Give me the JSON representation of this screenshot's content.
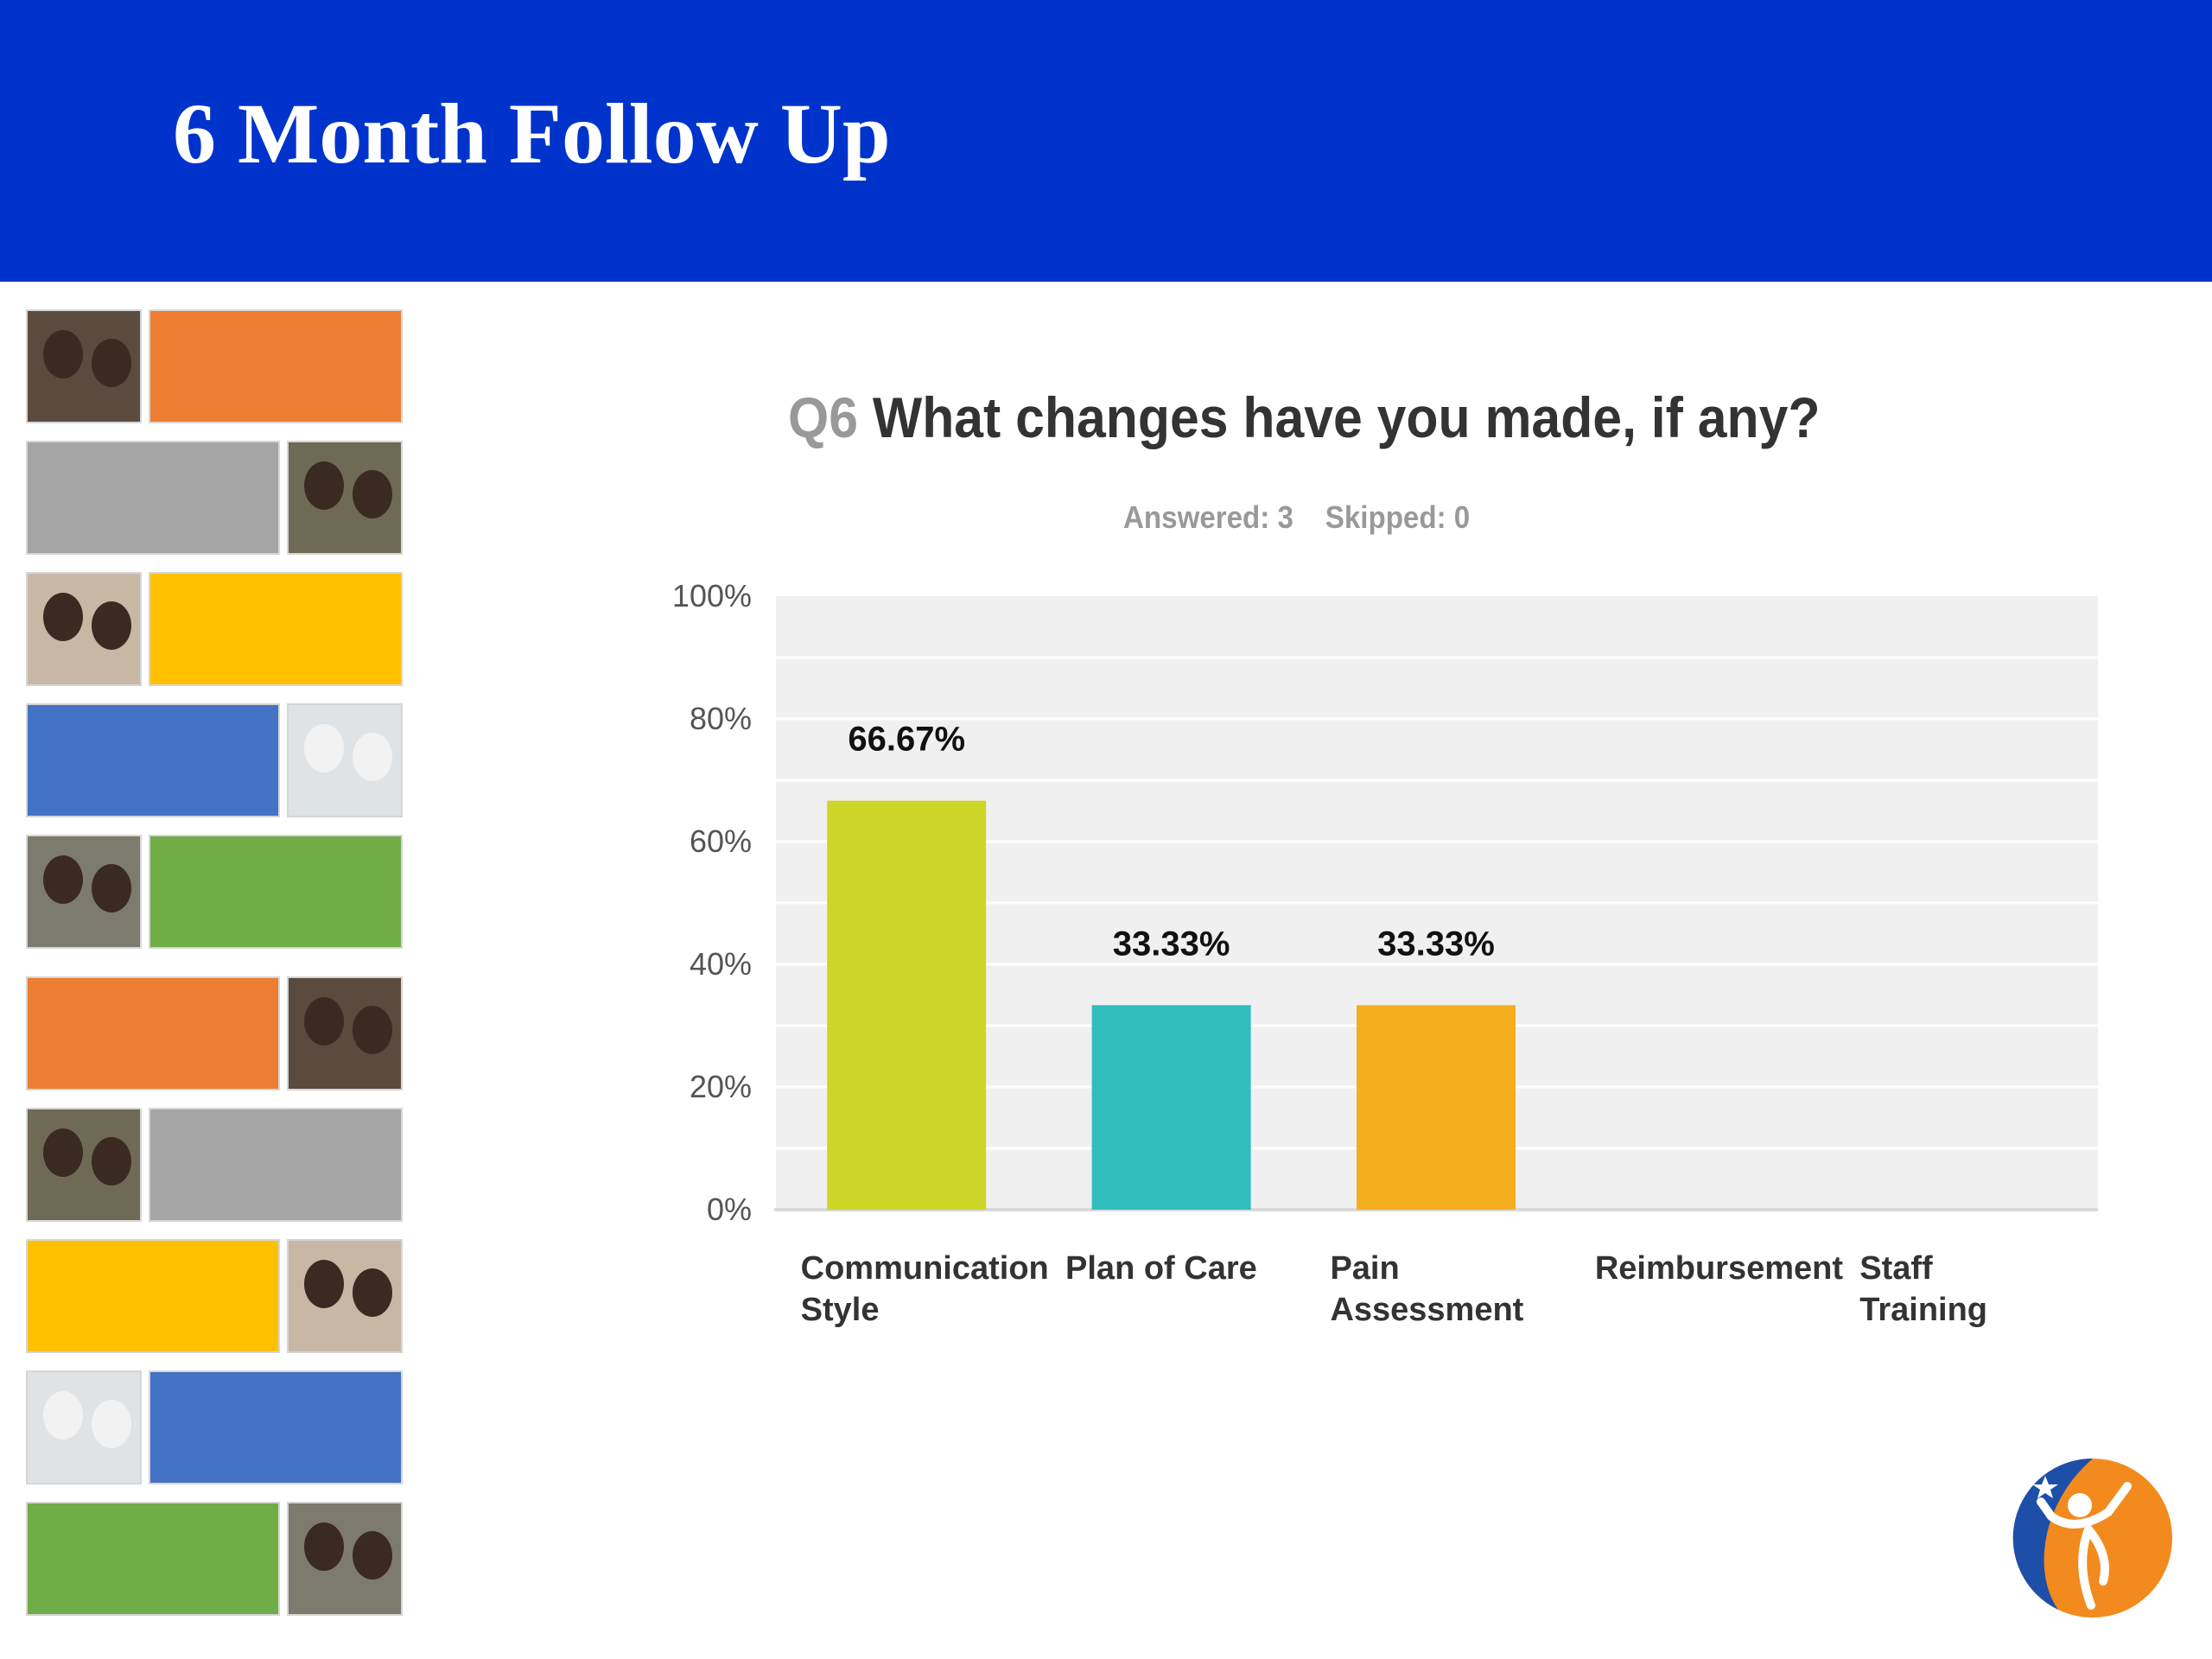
{
  "slide_title": "6 Month Follow Up",
  "chart_data": {
    "type": "bar",
    "title_prefix": "Q6",
    "title": "What changes have you made, if any?",
    "answered": "Answered: 3",
    "skipped": "Skipped: 0",
    "categories": [
      [
        "Communication",
        "Style"
      ],
      [
        "Plan of Care"
      ],
      [
        "Pain",
        "Assessment"
      ],
      [
        "Reimbursement"
      ],
      [
        "Staff",
        "Training"
      ]
    ],
    "values": [
      66.67,
      33.33,
      33.33,
      0,
      0
    ],
    "value_labels": [
      "66.67%",
      "33.33%",
      "33.33%",
      "",
      ""
    ],
    "bar_colors": [
      "#cdd627",
      "#31bcbd",
      "#f4ae1e",
      "#999999",
      "#999999"
    ],
    "ylim": [
      0,
      100
    ],
    "yticks": [
      0,
      20,
      40,
      60,
      80,
      100
    ],
    "ytick_labels": [
      "0%",
      "20%",
      "40%",
      "60%",
      "80%",
      "100%"
    ],
    "grid": true,
    "plot_background": "#f0f0f0"
  },
  "side_tiles": {
    "colors": [
      "#ed7d31",
      "#a5a5a5",
      "#ffc000",
      "#4472c4",
      "#70ad47",
      "#ed7d31",
      "#a5a5a5",
      "#ffc000",
      "#4472c4",
      "#70ad47"
    ]
  },
  "logo": {
    "name": "organization-logo",
    "colors": [
      "#1e4fa8",
      "#f28a1d"
    ]
  }
}
